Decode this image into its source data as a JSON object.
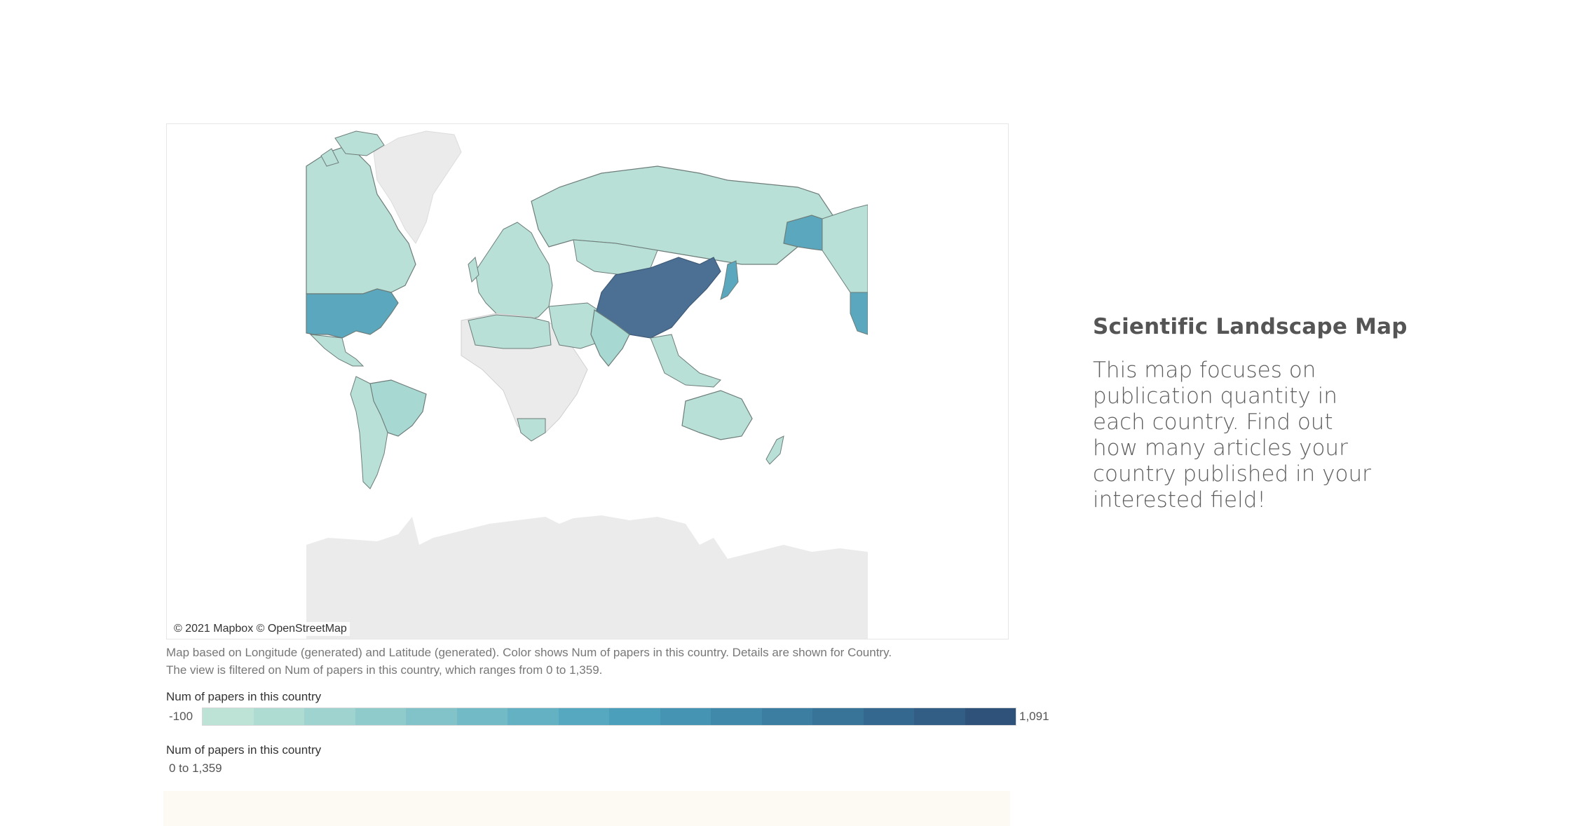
{
  "map": {
    "attribution": "© 2021 Mapbox © OpenStreetMap",
    "colors": {
      "ocean": "#ffffff",
      "no_data_land": "#ebebeb",
      "low": "#b9e0d6",
      "mid": "#5ba7bd",
      "high": "#4c6f94",
      "border": "#6d7d7a"
    },
    "highlighted_countries": [
      "China",
      "United States",
      "Russia",
      "Canada",
      "Brazil",
      "Australia",
      "India"
    ]
  },
  "caption": {
    "line1": "Map based on Longitude (generated) and Latitude (generated).  Color shows Num of papers in this country.  Details are shown for Country.",
    "line2": "The view is filtered on Num of papers in this country, which ranges from 0 to 1,359."
  },
  "color_legend": {
    "title": "Num of papers in this country",
    "min_label": "-100",
    "max_label": "1,091",
    "steps": [
      "#bde3d6",
      "#aedbd2",
      "#9fd3cf",
      "#90cbcc",
      "#81c3c9",
      "#72bac6",
      "#63b1c3",
      "#55a8c0",
      "#4b9fbb",
      "#4594b4",
      "#4089ab",
      "#3c7ea2",
      "#387398",
      "#35688e",
      "#325d85",
      "#2f527b"
    ]
  },
  "filter_legend": {
    "title": "Num of papers in this country",
    "value": "0 to 1,359"
  },
  "side_panel": {
    "title": "Scientific Landscape Map",
    "text": "This map focuses on publication quantity in each country. Find out how many articles your country published in your interested field!"
  }
}
